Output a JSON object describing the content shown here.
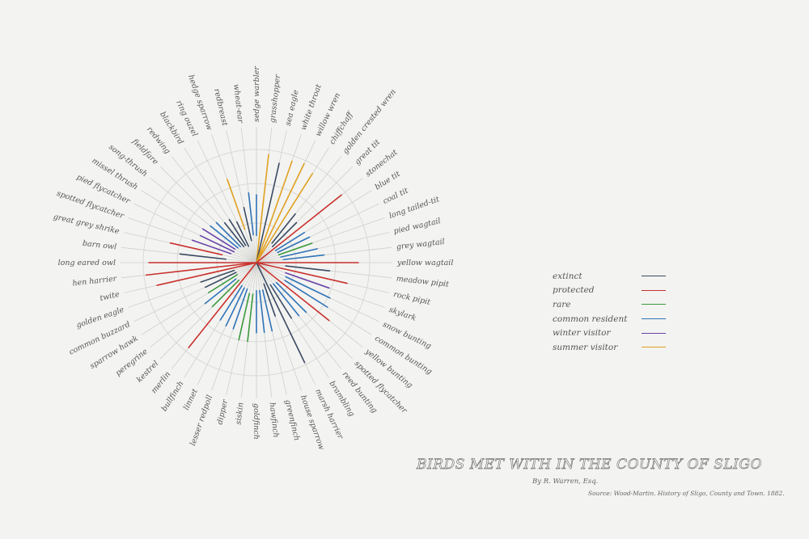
{
  "chart_data": {
    "type": "radial-line",
    "title": "BIRDS MET WITH IN THE COUNTY OF SLIGO",
    "author": "By R. Warren, Esq.",
    "source": "Source: Wood-Martin. History of Sligo, County and Town. 1882.",
    "categories": {
      "extinct": {
        "label": "extinct",
        "color": "#3a4a63"
      },
      "protected": {
        "label": "protected",
        "color": "#c8302c"
      },
      "rare": {
        "label": "rare",
        "color": "#3c9a3c"
      },
      "common_resident": {
        "label": "common resident",
        "color": "#2f73b8"
      },
      "winter_visitor": {
        "label": "winter visitor",
        "color": "#6a44a8"
      },
      "summer_visitor": {
        "label": "summer visitor",
        "color": "#e0a020"
      }
    },
    "legend_order": [
      "extinct",
      "protected",
      "rare",
      "common_resident",
      "winter_visitor",
      "summer_visitor"
    ],
    "birds": [
      {
        "name": "yellow wagtail",
        "status": "protected",
        "length": 0.9
      },
      {
        "name": "meadow pipit",
        "status": "extinct",
        "length": 0.65
      },
      {
        "name": "rock pipit",
        "status": "protected",
        "length": 0.82
      },
      {
        "name": "skylark",
        "status": "winter_visitor",
        "length": 0.68
      },
      {
        "name": "snow bunting",
        "status": "common_resident",
        "length": 0.72
      },
      {
        "name": "common bunting",
        "status": "common_resident",
        "length": 0.74
      },
      {
        "name": "yellow bunting",
        "status": "protected",
        "length": 0.82
      },
      {
        "name": "spotted flycatcher",
        "status": "common_resident",
        "length": 0.62
      },
      {
        "name": "reed bunting",
        "status": "common_resident",
        "length": 0.6
      },
      {
        "name": "brambling",
        "status": "extinct",
        "length": 0.58
      },
      {
        "name": "marsh harrier",
        "status": "extinct",
        "length": 0.98
      },
      {
        "name": "house sparrow",
        "status": "extinct",
        "length": 0.5
      },
      {
        "name": "greenfinch",
        "status": "common_resident",
        "length": 0.62
      },
      {
        "name": "hawfinch",
        "status": "common_resident",
        "length": 0.62
      },
      {
        "name": "goldfinch",
        "status": "common_resident",
        "length": 0.62
      },
      {
        "name": "siskin",
        "status": "rare",
        "length": 0.7
      },
      {
        "name": "dipper",
        "status": "rare",
        "length": 0.7
      },
      {
        "name": "lesser redpoll",
        "status": "common_resident",
        "length": 0.62
      },
      {
        "name": "linnet",
        "status": "common_resident",
        "length": 0.62
      },
      {
        "name": "bullfinch",
        "status": "common_resident",
        "length": 0.6
      },
      {
        "name": "merlin",
        "status": "protected",
        "length": 0.96
      },
      {
        "name": "kestrel",
        "status": "rare",
        "length": 0.55
      },
      {
        "name": "peregrine",
        "status": "common_resident",
        "length": 0.58
      },
      {
        "name": "sparrow hawk",
        "status": "rare",
        "length": 0.5
      },
      {
        "name": "common buzzard",
        "status": "extinct",
        "length": 0.5
      },
      {
        "name": "golden eagle",
        "status": "extinct",
        "length": 0.52
      },
      {
        "name": "twite",
        "status": "protected",
        "length": 0.9
      },
      {
        "name": "hen harrier",
        "status": "protected",
        "length": 0.98
      },
      {
        "name": "long eared owl",
        "status": "protected",
        "length": 0.95
      },
      {
        "name": "barn owl",
        "status": "extinct",
        "length": 0.68
      },
      {
        "name": "great grey shrike",
        "status": "protected",
        "length": 0.78
      },
      {
        "name": "spotted flycatcher",
        "status": "winter_visitor",
        "length": 0.6
      },
      {
        "name": "pied flycatcher",
        "status": "winter_visitor",
        "length": 0.55
      },
      {
        "name": "missel thrush",
        "status": "winter_visitor",
        "length": 0.56
      },
      {
        "name": "song-thrush",
        "status": "common_resident",
        "length": 0.52
      },
      {
        "name": "fieldfare",
        "status": "common_resident",
        "length": 0.5
      },
      {
        "name": "redwing",
        "status": "extinct",
        "length": 0.45
      },
      {
        "name": "blackbird",
        "status": "extinct",
        "length": 0.45
      },
      {
        "name": "ring ouzel",
        "status": "extinct",
        "length": 0.4
      },
      {
        "name": "hedge sparrow",
        "status": "summer_visitor",
        "length": 0.78
      },
      {
        "name": "redbreast",
        "status": "extinct",
        "length": 0.5
      },
      {
        "name": "wheat-ear",
        "status": "common_resident",
        "length": 0.62
      },
      {
        "name": "sedge warbler",
        "status": "common_resident",
        "length": 0.6
      },
      {
        "name": "grasshopper",
        "status": "summer_visitor",
        "length": 0.96
      },
      {
        "name": "sea eagle",
        "status": "extinct",
        "length": 0.9
      },
      {
        "name": "white throat",
        "status": "summer_visitor",
        "length": 0.95
      },
      {
        "name": "willow wren",
        "status": "summer_visitor",
        "length": 0.97
      },
      {
        "name": "chiffchaff",
        "status": "summer_visitor",
        "length": 0.93
      },
      {
        "name": "golden crested wren",
        "status": "extinct",
        "length": 0.55
      },
      {
        "name": "great tit",
        "status": "extinct",
        "length": 0.5
      },
      {
        "name": "stonechat",
        "status": "protected",
        "length": 0.96
      },
      {
        "name": "blue tit",
        "status": "common_resident",
        "length": 0.5
      },
      {
        "name": "coal tit",
        "status": "common_resident",
        "length": 0.52
      },
      {
        "name": "long tailed-tit",
        "status": "rare",
        "length": 0.52
      },
      {
        "name": "pied wagtail",
        "status": "common_resident",
        "length": 0.55
      },
      {
        "name": "grey wagtail",
        "status": "common_resident",
        "length": 0.6
      }
    ]
  }
}
